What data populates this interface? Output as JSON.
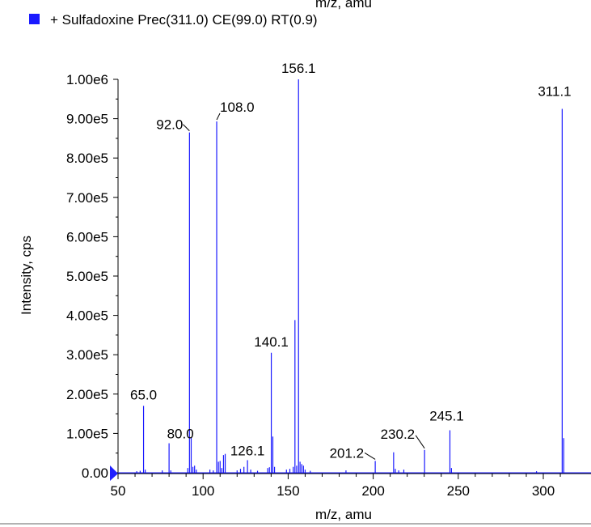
{
  "chart_data": {
    "type": "bar",
    "top_axis_label": "m/z, amu",
    "legend": [
      {
        "label": "+ Sulfadoxine Prec(311.0) CE(99.0) RT(0.9)",
        "color": "#1a1aff"
      }
    ],
    "xlabel": "m/z, amu",
    "ylabel": "Intensity, cps",
    "xlim": [
      47,
      320
    ],
    "ylim": [
      0,
      1000000
    ],
    "x_ticks": [
      50,
      100,
      150,
      200,
      250,
      300
    ],
    "y_ticks": [
      {
        "value": 0,
        "label": "0.00"
      },
      {
        "value": 100000,
        "label": "1.00e5"
      },
      {
        "value": 200000,
        "label": "2.00e5"
      },
      {
        "value": 300000,
        "label": "3.00e5"
      },
      {
        "value": 400000,
        "label": "4.00e5"
      },
      {
        "value": 500000,
        "label": "5.00e5"
      },
      {
        "value": 600000,
        "label": "6.00e5"
      },
      {
        "value": 700000,
        "label": "7.00e5"
      },
      {
        "value": 800000,
        "label": "8.00e5"
      },
      {
        "value": 900000,
        "label": "9.00e5"
      },
      {
        "value": 1000000,
        "label": "1.00e6"
      }
    ],
    "line_color": "#1a1aff",
    "peaks": [
      {
        "mz": 61.0,
        "intensity": 4000
      },
      {
        "mz": 63.0,
        "intensity": 5000
      },
      {
        "mz": 65.0,
        "intensity": 170000,
        "label": "65.0"
      },
      {
        "mz": 66.0,
        "intensity": 8000
      },
      {
        "mz": 76.0,
        "intensity": 6000
      },
      {
        "mz": 80.0,
        "intensity": 75000,
        "label": "80.0"
      },
      {
        "mz": 81.0,
        "intensity": 6000
      },
      {
        "mz": 91.0,
        "intensity": 12000
      },
      {
        "mz": 92.0,
        "intensity": 865000,
        "label": "92.0"
      },
      {
        "mz": 93.0,
        "intensity": 90000
      },
      {
        "mz": 94.0,
        "intensity": 15000
      },
      {
        "mz": 95.0,
        "intensity": 18000
      },
      {
        "mz": 96.0,
        "intensity": 8000
      },
      {
        "mz": 104.0,
        "intensity": 8000
      },
      {
        "mz": 106.0,
        "intensity": 6000
      },
      {
        "mz": 108.0,
        "intensity": 893000,
        "label": "108.0"
      },
      {
        "mz": 109.0,
        "intensity": 28000
      },
      {
        "mz": 110.0,
        "intensity": 30000
      },
      {
        "mz": 111.0,
        "intensity": 12000
      },
      {
        "mz": 112.0,
        "intensity": 45000
      },
      {
        "mz": 113.0,
        "intensity": 48000
      },
      {
        "mz": 120.0,
        "intensity": 6000
      },
      {
        "mz": 122.0,
        "intensity": 10000
      },
      {
        "mz": 124.0,
        "intensity": 15000
      },
      {
        "mz": 126.1,
        "intensity": 32000,
        "label": "126.1"
      },
      {
        "mz": 128.0,
        "intensity": 8000
      },
      {
        "mz": 132.0,
        "intensity": 5000
      },
      {
        "mz": 138.0,
        "intensity": 12000
      },
      {
        "mz": 139.0,
        "intensity": 14000
      },
      {
        "mz": 140.1,
        "intensity": 305000,
        "label": "140.1"
      },
      {
        "mz": 141.0,
        "intensity": 92000
      },
      {
        "mz": 142.0,
        "intensity": 15000
      },
      {
        "mz": 149.0,
        "intensity": 8000
      },
      {
        "mz": 151.0,
        "intensity": 10000
      },
      {
        "mz": 153.0,
        "intensity": 15000
      },
      {
        "mz": 154.0,
        "intensity": 388000
      },
      {
        "mz": 155.0,
        "intensity": 18000
      },
      {
        "mz": 156.1,
        "intensity": 1000000,
        "label": "156.1"
      },
      {
        "mz": 157.0,
        "intensity": 28000
      },
      {
        "mz": 158.0,
        "intensity": 22000
      },
      {
        "mz": 159.0,
        "intensity": 18000
      },
      {
        "mz": 160.0,
        "intensity": 8000
      },
      {
        "mz": 163.0,
        "intensity": 5000
      },
      {
        "mz": 184.0,
        "intensity": 6000
      },
      {
        "mz": 201.2,
        "intensity": 30000,
        "label": "201.2"
      },
      {
        "mz": 212.0,
        "intensity": 52000
      },
      {
        "mz": 213.0,
        "intensity": 10000
      },
      {
        "mz": 215.0,
        "intensity": 6000
      },
      {
        "mz": 218.0,
        "intensity": 8000
      },
      {
        "mz": 230.2,
        "intensity": 58000,
        "label": "230.2"
      },
      {
        "mz": 245.1,
        "intensity": 108000,
        "label": "245.1"
      },
      {
        "mz": 246.0,
        "intensity": 12000
      },
      {
        "mz": 296.0,
        "intensity": 4000
      },
      {
        "mz": 311.1,
        "intensity": 925000,
        "label": "311.1"
      },
      {
        "mz": 312.0,
        "intensity": 88000
      }
    ]
  }
}
